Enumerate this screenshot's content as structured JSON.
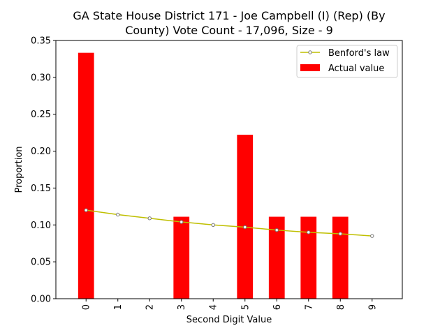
{
  "chart_data": {
    "type": "bar",
    "title_lines": [
      "GA State House District 171 - Joe Campbell (I) (Rep) (By",
      "County) Vote Count - 17,096, Size - 9"
    ],
    "xlabel": "Second Digit Value",
    "ylabel": "Proportion",
    "categories": [
      "0",
      "1",
      "2",
      "3",
      "4",
      "5",
      "6",
      "7",
      "8",
      "9"
    ],
    "ylim": [
      0,
      0.35
    ],
    "yticks": [
      "0.00",
      "0.05",
      "0.10",
      "0.15",
      "0.20",
      "0.25",
      "0.30",
      "0.35"
    ],
    "grid": false,
    "legend_position": "top-right",
    "series": [
      {
        "name": "Benford's law",
        "kind": "line",
        "color": "#bfbf00",
        "marker": "circle",
        "values": [
          0.12,
          0.114,
          0.109,
          0.104,
          0.1,
          0.097,
          0.093,
          0.09,
          0.088,
          0.085
        ]
      },
      {
        "name": "Actual value",
        "kind": "bar",
        "color": "#ff0000",
        "values": [
          0.3333,
          0,
          0,
          0.1111,
          0,
          0.2222,
          0.1111,
          0.1111,
          0.1111,
          0
        ]
      }
    ]
  }
}
